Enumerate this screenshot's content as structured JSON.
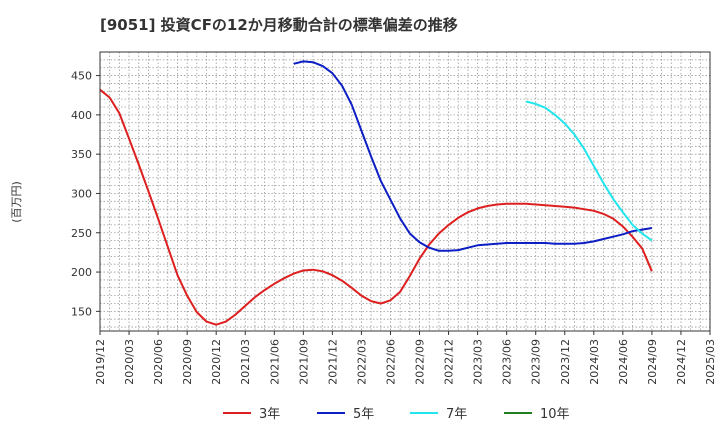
{
  "chart_data": {
    "type": "line",
    "title": "[9051]  投資CFの12か月移動合計の標準偏差の推移",
    "ylabel": "(百万円)",
    "xlabel": "",
    "ylim": [
      125,
      480
    ],
    "y_ticks": [
      150,
      200,
      250,
      300,
      350,
      400,
      450
    ],
    "x_ticks": [
      "2019/12",
      "2020/03",
      "2020/06",
      "2020/09",
      "2020/12",
      "2021/03",
      "2021/06",
      "2021/09",
      "2021/12",
      "2022/03",
      "2022/06",
      "2022/09",
      "2022/12",
      "2023/03",
      "2023/06",
      "2023/09",
      "2023/12",
      "2024/03",
      "2024/06",
      "2024/09",
      "2024/12",
      "2025/03"
    ],
    "grid": true,
    "legend_position": "bottom",
    "series": [
      {
        "name": "3年",
        "color": "#dd1f1f",
        "x": [
          "2019/12",
          "2020/01",
          "2020/02",
          "2020/03",
          "2020/04",
          "2020/05",
          "2020/06",
          "2020/07",
          "2020/08",
          "2020/09",
          "2020/10",
          "2020/11",
          "2020/12",
          "2021/01",
          "2021/02",
          "2021/03",
          "2021/04",
          "2021/05",
          "2021/06",
          "2021/07",
          "2021/08",
          "2021/09",
          "2021/10",
          "2021/11",
          "2021/12",
          "2022/01",
          "2022/02",
          "2022/03",
          "2022/04",
          "2022/05",
          "2022/06",
          "2022/07",
          "2022/08",
          "2022/09",
          "2022/10",
          "2022/11",
          "2022/12",
          "2023/01",
          "2023/02",
          "2023/03",
          "2023/04",
          "2023/05",
          "2023/06",
          "2023/07",
          "2023/08",
          "2023/09",
          "2023/10",
          "2023/11",
          "2023/12",
          "2024/01",
          "2024/02",
          "2024/03",
          "2024/04",
          "2024/05",
          "2024/06",
          "2024/07",
          "2024/08",
          "2024/09"
        ],
        "values": [
          432,
          422,
          402,
          370,
          337,
          303,
          268,
          232,
          196,
          170,
          149,
          137,
          133,
          137,
          146,
          157,
          168,
          177,
          185,
          192,
          198,
          202,
          203,
          201,
          196,
          189,
          180,
          170,
          163,
          160,
          164,
          175,
          195,
          217,
          235,
          249,
          260,
          269,
          276,
          281,
          284,
          286,
          287,
          287,
          287,
          286,
          285,
          284,
          283,
          282,
          280,
          278,
          274,
          268,
          258,
          245,
          230,
          201
        ]
      },
      {
        "name": "5年",
        "color": "#0c1ec4",
        "x": [
          "2021/08",
          "2021/09",
          "2021/10",
          "2021/11",
          "2021/12",
          "2022/01",
          "2022/02",
          "2022/03",
          "2022/04",
          "2022/05",
          "2022/06",
          "2022/07",
          "2022/08",
          "2022/09",
          "2022/10",
          "2022/11",
          "2022/12",
          "2023/01",
          "2023/02",
          "2023/03",
          "2023/04",
          "2023/05",
          "2023/06",
          "2023/07",
          "2023/08",
          "2023/09",
          "2023/10",
          "2023/11",
          "2023/12",
          "2024/01",
          "2024/02",
          "2024/03",
          "2024/04",
          "2024/05",
          "2024/06",
          "2024/07",
          "2024/08",
          "2024/09"
        ],
        "values": [
          465,
          468,
          467,
          462,
          453,
          437,
          413,
          380,
          347,
          316,
          292,
          268,
          249,
          238,
          231,
          227,
          227,
          228,
          231,
          234,
          235,
          236,
          237,
          237,
          237,
          237,
          237,
          236,
          236,
          236,
          237,
          239,
          242,
          245,
          248,
          252,
          254,
          256
        ]
      },
      {
        "name": "7年",
        "color": "#22e6ee",
        "x": [
          "2023/08",
          "2023/09",
          "2023/10",
          "2023/11",
          "2023/12",
          "2024/01",
          "2024/02",
          "2024/03",
          "2024/04",
          "2024/05",
          "2024/06",
          "2024/07",
          "2024/08",
          "2024/09"
        ],
        "values": [
          417,
          414,
          409,
          400,
          389,
          375,
          357,
          335,
          313,
          293,
          276,
          260,
          249,
          240
        ]
      },
      {
        "name": "10年",
        "color": "#208020",
        "x": [],
        "values": []
      }
    ]
  }
}
